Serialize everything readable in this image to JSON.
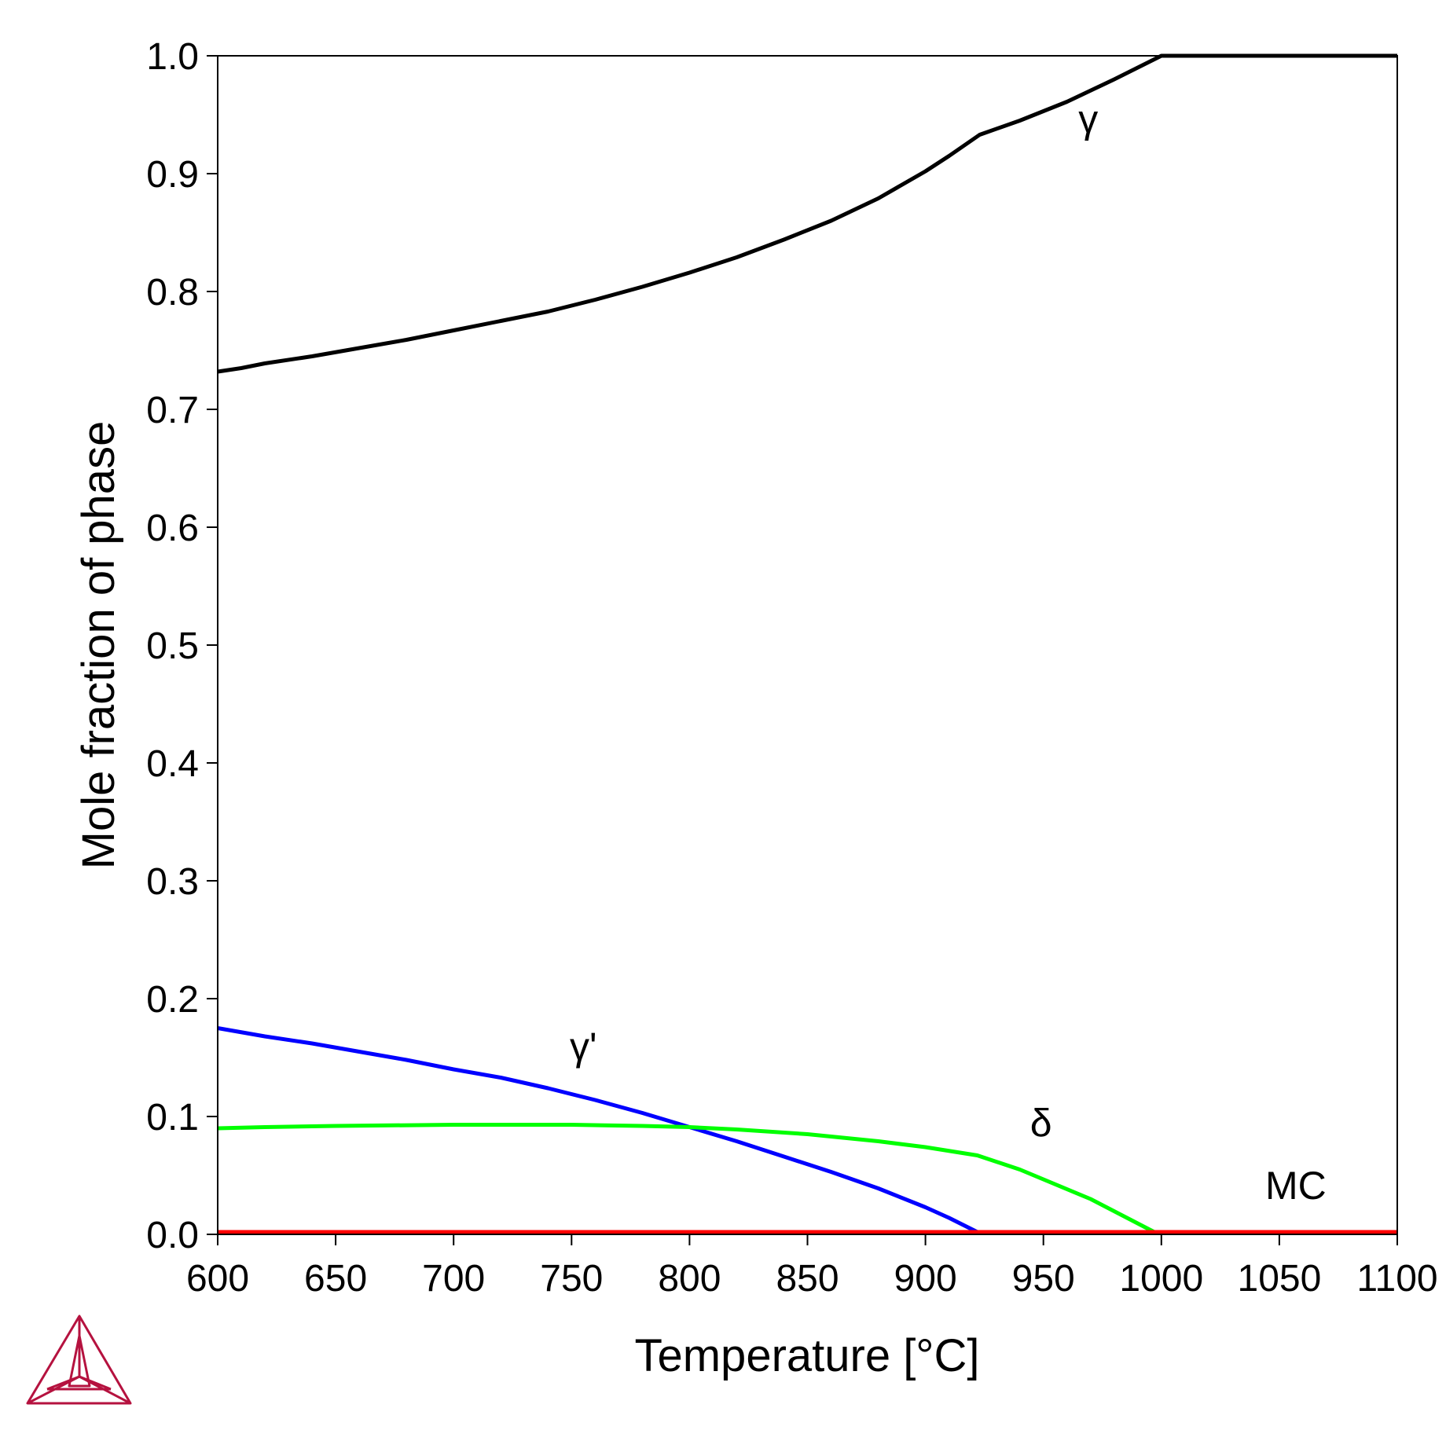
{
  "chart_data": {
    "type": "line",
    "title": "",
    "xlabel": "Temperature [°C]",
    "ylabel": "Mole fraction of phase",
    "xlim": [
      600,
      1100
    ],
    "ylim": [
      0,
      1.0
    ],
    "xticks": [
      600,
      650,
      700,
      750,
      800,
      850,
      900,
      950,
      1000,
      1050,
      1100
    ],
    "yticks": [
      0.0,
      0.1,
      0.2,
      0.3,
      0.4,
      0.5,
      0.6,
      0.7,
      0.8,
      0.9,
      1.0
    ],
    "xtick_labels": [
      "600",
      "650",
      "700",
      "750",
      "800",
      "850",
      "900",
      "950",
      "1000",
      "1050",
      "1100"
    ],
    "ytick_labels": [
      "0.0",
      "0.1",
      "0.2",
      "0.3",
      "0.4",
      "0.5",
      "0.6",
      "0.7",
      "0.8",
      "0.9",
      "1.0"
    ],
    "grid": false,
    "series": [
      {
        "name": "γ",
        "color": "#000000",
        "x": [
          600,
          610,
          620,
          640,
          660,
          680,
          700,
          720,
          740,
          760,
          780,
          800,
          820,
          840,
          860,
          880,
          900,
          910,
          923,
          940,
          960,
          980,
          1000,
          1100
        ],
        "y": [
          0.732,
          0.735,
          0.739,
          0.745,
          0.752,
          0.759,
          0.767,
          0.775,
          0.783,
          0.793,
          0.804,
          0.816,
          0.829,
          0.844,
          0.86,
          0.879,
          0.902,
          0.915,
          0.933,
          0.945,
          0.961,
          0.98,
          1.0,
          1.0
        ],
        "label": "γ",
        "label_x": 969,
        "label_y": 0.935
      },
      {
        "name": "γ'",
        "color": "#0000ff",
        "x": [
          600,
          620,
          640,
          660,
          680,
          700,
          720,
          740,
          760,
          780,
          800,
          820,
          840,
          860,
          880,
          900,
          910,
          922
        ],
        "y": [
          0.175,
          0.168,
          0.162,
          0.155,
          0.148,
          0.14,
          0.133,
          0.124,
          0.114,
          0.103,
          0.091,
          0.079,
          0.066,
          0.053,
          0.039,
          0.023,
          0.014,
          0.002
        ],
        "label": "γ'",
        "label_x": 755,
        "label_y": 0.148
      },
      {
        "name": "δ",
        "color": "#00ff00",
        "x": [
          600,
          620,
          650,
          700,
          750,
          780,
          800,
          820,
          850,
          880,
          900,
          922,
          940,
          970,
          997
        ],
        "y": [
          0.09,
          0.091,
          0.092,
          0.093,
          0.093,
          0.092,
          0.091,
          0.089,
          0.085,
          0.079,
          0.074,
          0.067,
          0.055,
          0.03,
          0.002
        ],
        "label": "δ",
        "label_x": 949,
        "label_y": 0.083
      },
      {
        "name": "MC",
        "color": "#ff0000",
        "x": [
          600,
          1100
        ],
        "y": [
          0.002,
          0.002
        ],
        "label": "MC",
        "label_x": 1057,
        "label_y": 0.03
      }
    ]
  },
  "logo": {
    "name": "thermo-calc-logo",
    "color": "#b5123f"
  }
}
